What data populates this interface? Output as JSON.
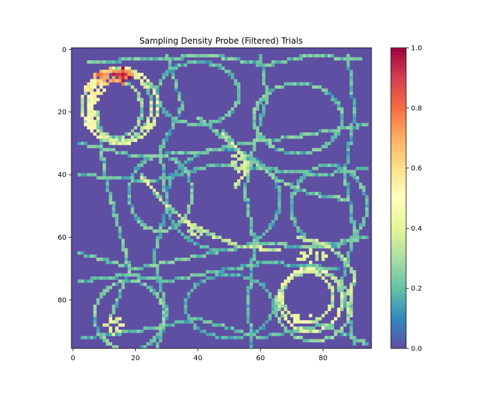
{
  "chart_data": {
    "type": "heatmap",
    "title": "Sampling Density Probe (Filtered) Trials",
    "grid_size": 96,
    "x_ticks": [
      0,
      20,
      40,
      60,
      80
    ],
    "y_ticks": [
      0,
      20,
      40,
      60,
      80
    ],
    "x_tick_labels": [
      "0",
      "20",
      "40",
      "60",
      "80"
    ],
    "y_tick_labels": [
      "0",
      "20",
      "40",
      "60",
      "80"
    ],
    "xlim": [
      -0.5,
      95.5
    ],
    "ylim": [
      95.5,
      -0.5
    ],
    "colormap": "Spectral_r",
    "colorbar": {
      "min": 0.0,
      "max": 1.0,
      "ticks": [
        0.0,
        0.2,
        0.4,
        0.6,
        0.8,
        1.0
      ],
      "tick_labels": [
        "0.0",
        "0.2",
        "0.4",
        "0.6",
        "0.8",
        "1.0"
      ]
    },
    "background_value": 0.0,
    "colors": {
      "background": "#5e4fa2",
      "low": "#3288bd",
      "mid_low": "#66c2a5",
      "mid": "#abdda4",
      "mid_high": "#fee08b",
      "high": "#f46d43",
      "max": "#9e0142"
    },
    "paths": [
      {
        "kind": "ring",
        "cx": 15,
        "cy": 18,
        "rx": 12,
        "ry": 12,
        "value": 0.35
      },
      {
        "kind": "ring",
        "cx": 15,
        "cy": 18,
        "rx": 10,
        "ry": 11,
        "value": 0.3
      },
      {
        "kind": "ring",
        "cx": 14,
        "cy": 19,
        "rx": 8,
        "ry": 9,
        "value": 0.25
      },
      {
        "kind": "ring",
        "cx": 76,
        "cy": 80,
        "rx": 10,
        "ry": 10,
        "value": 0.35
      },
      {
        "kind": "ring",
        "cx": 75,
        "cy": 79,
        "rx": 8,
        "ry": 8,
        "value": 0.3
      },
      {
        "kind": "ring",
        "cx": 77,
        "cy": 82,
        "rx": 12,
        "ry": 11,
        "value": 0.25
      },
      {
        "kind": "ring",
        "cx": 72,
        "cy": 22,
        "rx": 14,
        "ry": 11,
        "value": 0.2
      },
      {
        "kind": "ring",
        "cx": 40,
        "cy": 14,
        "rx": 13,
        "ry": 10,
        "value": 0.18
      },
      {
        "kind": "ring",
        "cx": 18,
        "cy": 85,
        "rx": 11,
        "ry": 11,
        "value": 0.22
      },
      {
        "kind": "ring",
        "cx": 50,
        "cy": 82,
        "rx": 14,
        "ry": 10,
        "value": 0.15
      },
      {
        "kind": "ring",
        "cx": 82,
        "cy": 50,
        "rx": 12,
        "ry": 13,
        "value": 0.18
      },
      {
        "kind": "ring",
        "cx": 48,
        "cy": 48,
        "rx": 18,
        "ry": 16,
        "value": 0.15
      },
      {
        "kind": "ring",
        "cx": 28,
        "cy": 46,
        "rx": 10,
        "ry": 12,
        "value": 0.2
      },
      {
        "kind": "line",
        "points": [
          [
            5,
            4
          ],
          [
            25,
            3
          ],
          [
            45,
            2
          ],
          [
            62,
            5
          ],
          [
            75,
            2
          ],
          [
            92,
            3
          ]
        ],
        "value": 0.2
      },
      {
        "kind": "line",
        "points": [
          [
            2,
            30
          ],
          [
            20,
            34
          ],
          [
            40,
            33
          ],
          [
            55,
            30
          ],
          [
            70,
            28
          ],
          [
            94,
            24
          ]
        ],
        "value": 0.2
      },
      {
        "kind": "line",
        "points": [
          [
            2,
            40
          ],
          [
            25,
            42
          ],
          [
            45,
            37
          ],
          [
            60,
            38
          ],
          [
            80,
            40
          ],
          [
            94,
            38
          ]
        ],
        "value": 0.18
      },
      {
        "kind": "line",
        "points": [
          [
            2,
            65
          ],
          [
            20,
            70
          ],
          [
            40,
            66
          ],
          [
            58,
            62
          ],
          [
            78,
            63
          ],
          [
            94,
            60
          ]
        ],
        "value": 0.2
      },
      {
        "kind": "line",
        "points": [
          [
            2,
            74
          ],
          [
            18,
            72
          ],
          [
            30,
            74
          ],
          [
            45,
            71
          ],
          [
            62,
            68
          ],
          [
            85,
            70
          ]
        ],
        "value": 0.18
      },
      {
        "kind": "line",
        "points": [
          [
            3,
            92
          ],
          [
            20,
            90
          ],
          [
            40,
            86
          ],
          [
            60,
            92
          ],
          [
            80,
            88
          ],
          [
            94,
            94
          ]
        ],
        "value": 0.18
      },
      {
        "kind": "line",
        "points": [
          [
            60,
            2
          ],
          [
            62,
            15
          ],
          [
            58,
            30
          ],
          [
            55,
            45
          ],
          [
            58,
            62
          ],
          [
            56,
            80
          ],
          [
            57,
            95
          ]
        ],
        "value": 0.18
      },
      {
        "kind": "line",
        "points": [
          [
            88,
            2
          ],
          [
            90,
            20
          ],
          [
            87,
            40
          ],
          [
            90,
            58
          ],
          [
            86,
            75
          ],
          [
            90,
            94
          ]
        ],
        "value": 0.18
      },
      {
        "kind": "line",
        "points": [
          [
            30,
            2
          ],
          [
            35,
            18
          ],
          [
            28,
            32
          ],
          [
            30,
            50
          ],
          [
            26,
            66
          ],
          [
            30,
            84
          ],
          [
            27,
            95
          ]
        ],
        "value": 0.18
      },
      {
        "kind": "line",
        "points": [
          [
            8,
            20
          ],
          [
            10,
            40
          ],
          [
            14,
            55
          ],
          [
            18,
            70
          ],
          [
            12,
            86
          ]
        ],
        "value": 0.2
      },
      {
        "kind": "line",
        "points": [
          [
            22,
            40
          ],
          [
            30,
            50
          ],
          [
            38,
            56
          ],
          [
            46,
            60
          ],
          [
            54,
            63
          ],
          [
            66,
            64
          ]
        ],
        "value": 0.3
      },
      {
        "kind": "line",
        "points": [
          [
            40,
            22
          ],
          [
            50,
            30
          ],
          [
            58,
            36
          ],
          [
            66,
            42
          ],
          [
            76,
            46
          ],
          [
            88,
            48
          ]
        ],
        "value": 0.22
      },
      {
        "kind": "line",
        "points": [
          [
            48,
            26
          ],
          [
            53,
            32
          ],
          [
            56,
            38
          ],
          [
            52,
            44
          ]
        ],
        "value": 0.3
      },
      {
        "kind": "line",
        "points": [
          [
            72,
            60
          ],
          [
            80,
            62
          ],
          [
            86,
            66
          ],
          [
            90,
            72
          ],
          [
            88,
            84
          ]
        ],
        "value": 0.3
      }
    ],
    "hotspots": [
      {
        "cx": 12,
        "cy": 9,
        "rx": 6,
        "ry": 3,
        "value": 0.85
      },
      {
        "cx": 16,
        "cy": 8,
        "rx": 3,
        "ry": 2,
        "value": 1.0
      },
      {
        "cx": 7,
        "cy": 13,
        "rx": 3,
        "ry": 4,
        "value": 0.6
      },
      {
        "cx": 6,
        "cy": 22,
        "rx": 2,
        "ry": 5,
        "value": 0.55
      },
      {
        "cx": 13,
        "cy": 88,
        "rx": 3,
        "ry": 3,
        "value": 0.45
      },
      {
        "cx": 73,
        "cy": 86,
        "rx": 4,
        "ry": 2,
        "value": 0.5
      },
      {
        "cx": 76,
        "cy": 66,
        "rx": 5,
        "ry": 2,
        "value": 0.45
      },
      {
        "cx": 53,
        "cy": 36,
        "rx": 3,
        "ry": 3,
        "value": 0.4
      },
      {
        "cx": 40,
        "cy": 58,
        "rx": 3,
        "ry": 2,
        "value": 0.4
      }
    ]
  }
}
